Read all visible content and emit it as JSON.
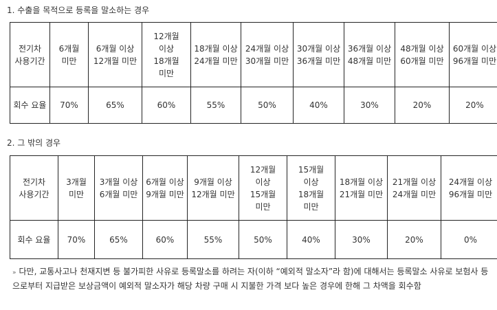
{
  "section1": {
    "title": "1. 수출을 목적으로 등록을 말소하는 경우",
    "row_header_period": "전기차 사용기간",
    "row_header_rate": "회수 요율",
    "periods": [
      "6개월 미만",
      "6개월 이상 12개월 미만",
      "12개월 이상 18개월 미만",
      "18개월 이상 24개월 미만",
      "24개월 이상 30개월 미만",
      "30개월 이상 36개월 미만",
      "36개월 이상 48개월 미만",
      "48개월 이상 60개월 미만",
      "60개월 이상 96개월 미만"
    ],
    "rates": [
      "70%",
      "65%",
      "60%",
      "55%",
      "50%",
      "40%",
      "30%",
      "20%",
      "20%"
    ]
  },
  "section2": {
    "title": "2. 그 밖의 경우",
    "row_header_period": "전기차 사용기간",
    "row_header_rate": "회수 요율",
    "periods": [
      "3개월 미만",
      "3개월 이상 6개월 미만",
      "6개월 이상 9개월 미만",
      "9개월 이상 12개월 미만",
      "12개월 이상 15개월 미만",
      "15개월 이상 18개월 미만",
      "18개월 이상 21개월 미만",
      "21개월 이상 24개월 미만",
      "24개월 이상 96개월 미만"
    ],
    "rates": [
      "70%",
      "65%",
      "60%",
      "55%",
      "50%",
      "40%",
      "30%",
      "20%",
      "0%"
    ]
  },
  "note": {
    "marker": "»",
    "text": "다만, 교통사고나 천재지변 등 불가피한 사유로 등록말소를 하려는 자(이하 “예외적 말소자”라 함)에 대해서는 등록말소 사유로 보험사 등으로부터 지급받은 보상금액이 예외적 말소자가 해당 차량 구매 시 지불한 가격 보다 높은 경우에 한해 그 차액을 회수함"
  }
}
